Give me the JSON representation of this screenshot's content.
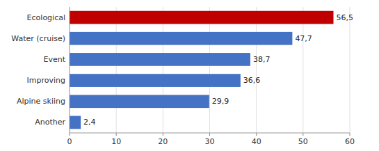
{
  "chart_data": {
    "type": "bar",
    "orientation": "horizontal",
    "categories": [
      "Another",
      "Alpine skiing",
      "Improving",
      "Event",
      "Water (cruise)",
      "Ecological"
    ],
    "values": [
      2.4,
      29.9,
      36.6,
      38.7,
      47.7,
      56.5
    ],
    "value_labels": [
      "2,4",
      "29,9",
      "36,6",
      "38,7",
      "47,7",
      "56,5"
    ],
    "colors": [
      "#4472C4",
      "#4472C4",
      "#4472C4",
      "#4472C4",
      "#4472C4",
      "#C00000"
    ],
    "xlim": [
      0,
      60
    ],
    "xticks": [
      0,
      10,
      20,
      30,
      40,
      50,
      60
    ],
    "grid": true,
    "data_labels": true
  }
}
